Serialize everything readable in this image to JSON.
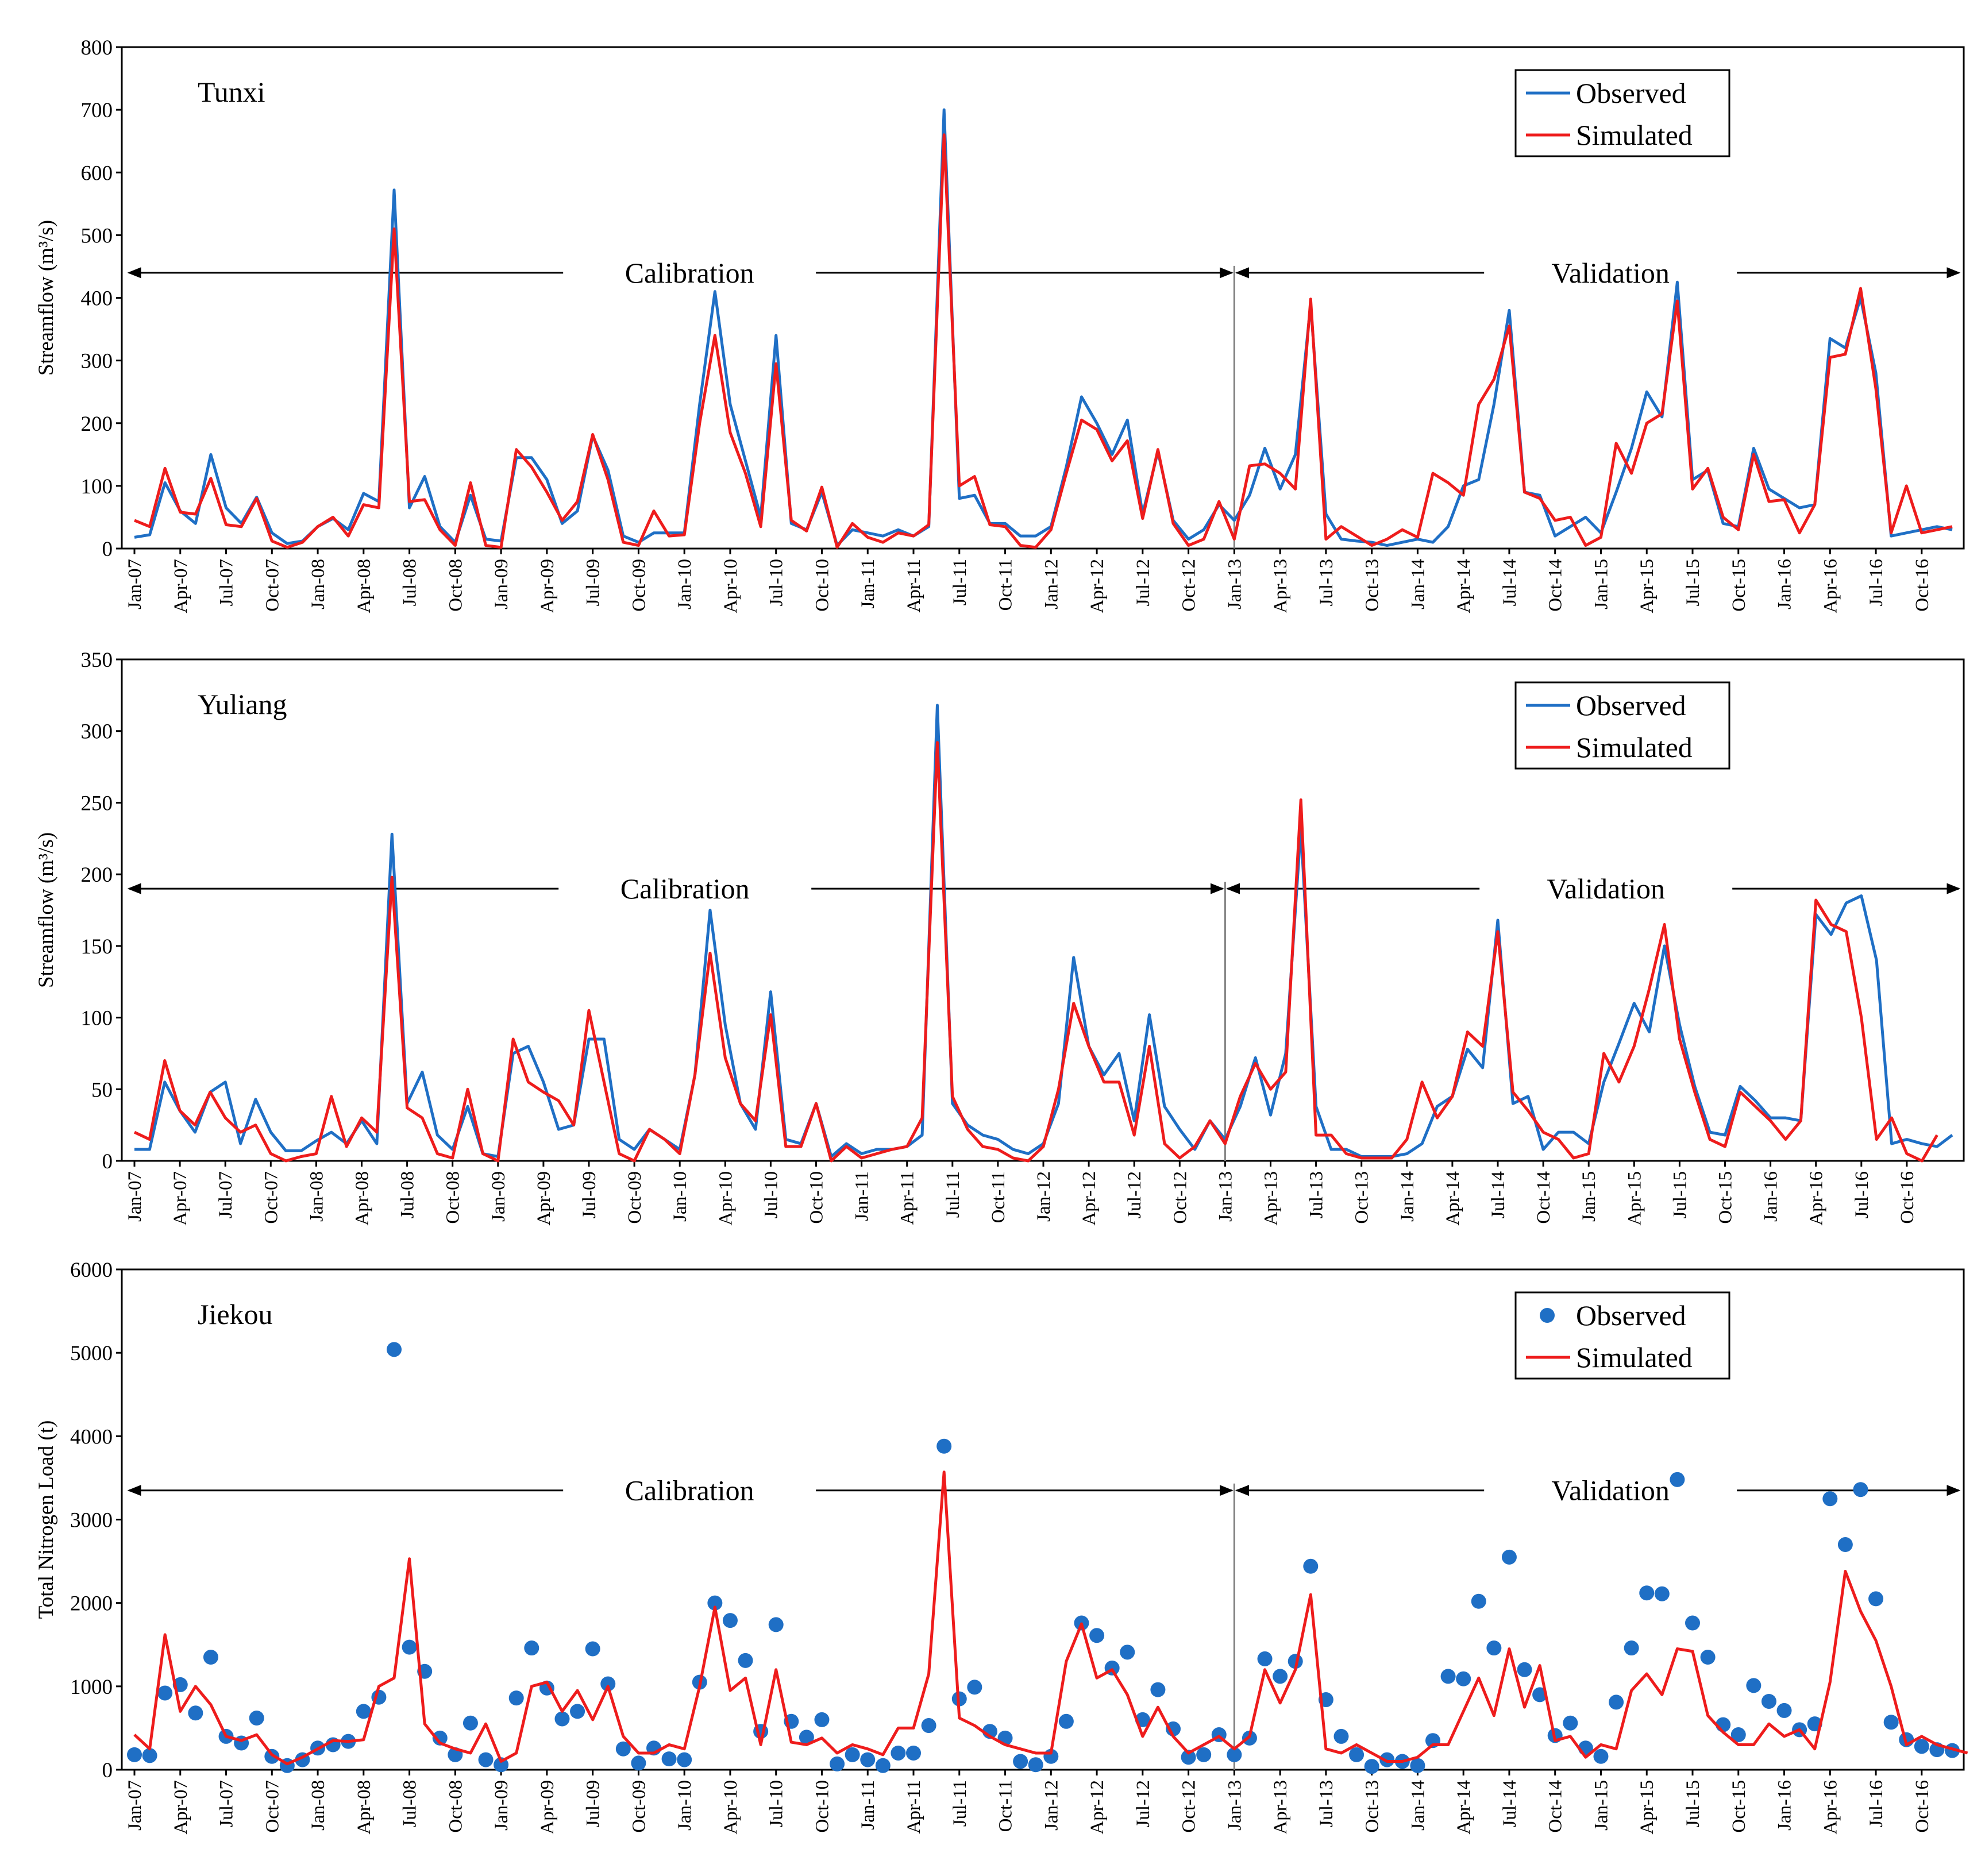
{
  "colors": {
    "observed": "#1F6FC5",
    "simulated": "#EE1C1C",
    "axis": "#000000",
    "period_line": "#808080"
  },
  "x_tick_labels": [
    "Jan-07",
    "Apr-07",
    "Jul-07",
    "Oct-07",
    "Jan-08",
    "Apr-08",
    "Jul-08",
    "Oct-08",
    "Jan-09",
    "Apr-09",
    "Jul-09",
    "Oct-09",
    "Jan-10",
    "Apr-10",
    "Jul-10",
    "Oct-10",
    "Jan-11",
    "Apr-11",
    "Jul-11",
    "Oct-11",
    "Jan-12",
    "Apr-12",
    "Jul-12",
    "Oct-12",
    "Jan-13",
    "Apr-13",
    "Jul-13",
    "Oct-13",
    "Jan-14",
    "Apr-14",
    "Jul-14",
    "Oct-14",
    "Jan-15",
    "Apr-15",
    "Jul-15",
    "Oct-15",
    "Jan-16",
    "Apr-16",
    "Jul-16",
    "Oct-16"
  ],
  "chart_data": [
    {
      "type": "line",
      "title": "Tunxi",
      "ylabel": "Streamflow (m³/s)",
      "ylim": [
        0,
        800
      ],
      "yticks": [
        0,
        100,
        200,
        300,
        400,
        500,
        600,
        700,
        800
      ],
      "period_labels": {
        "calibration": "Calibration",
        "validation": "Validation"
      },
      "period_arrow_value": 440,
      "split_index": 72,
      "series": [
        {
          "name": "Observed",
          "marker": "line",
          "values": [
            18,
            22,
            105,
            60,
            40,
            150,
            65,
            40,
            82,
            25,
            8,
            12,
            35,
            48,
            30,
            88,
            75,
            572,
            65,
            115,
            35,
            10,
            85,
            15,
            12,
            145,
            145,
            110,
            40,
            60,
            180,
            125,
            20,
            10,
            25,
            25,
            25,
            230,
            410,
            230,
            140,
            50,
            340,
            40,
            30,
            90,
            5,
            30,
            25,
            20,
            30,
            20,
            35,
            700,
            80,
            85,
            40,
            40,
            20,
            20,
            35,
            130,
            242,
            200,
            150,
            205,
            55,
            155,
            45,
            15,
            30,
            70,
            45,
            85,
            160,
            95,
            150,
            390,
            55,
            15,
            12,
            10,
            5,
            10,
            15,
            10,
            35,
            100,
            110,
            230,
            380,
            90,
            85,
            20,
            35,
            50,
            25,
            90,
            160,
            250,
            210,
            425,
            110,
            125,
            40,
            35,
            160,
            95,
            80,
            65,
            70,
            335,
            320,
            400,
            280,
            20,
            25,
            30,
            35,
            30
          ]
        },
        {
          "name": "Simulated",
          "marker": "line",
          "values": [
            45,
            35,
            128,
            58,
            55,
            112,
            38,
            35,
            80,
            12,
            2,
            10,
            35,
            50,
            20,
            70,
            65,
            510,
            75,
            78,
            30,
            5,
            105,
            5,
            2,
            158,
            130,
            90,
            45,
            75,
            182,
            110,
            10,
            5,
            60,
            20,
            22,
            200,
            340,
            185,
            120,
            35,
            295,
            45,
            28,
            98,
            2,
            40,
            18,
            10,
            25,
            20,
            38,
            660,
            100,
            115,
            38,
            35,
            5,
            2,
            30,
            120,
            205,
            190,
            140,
            172,
            48,
            158,
            40,
            5,
            15,
            75,
            15,
            132,
            135,
            120,
            95,
            398,
            15,
            35,
            20,
            5,
            15,
            30,
            18,
            120,
            105,
            85,
            230,
            270,
            355,
            90,
            80,
            45,
            50,
            5,
            18,
            168,
            120,
            200,
            215,
            395,
            95,
            128,
            50,
            30,
            150,
            75,
            78,
            25,
            70,
            305,
            310,
            415,
            255,
            25,
            100,
            25,
            30,
            35
          ]
        }
      ]
    },
    {
      "type": "line",
      "title": "Yuliang",
      "ylabel": "Streamflow (m³/s)",
      "ylim": [
        0,
        350
      ],
      "yticks": [
        0,
        50,
        100,
        150,
        200,
        250,
        300,
        350
      ],
      "period_labels": {
        "calibration": "Calibration",
        "validation": "Validation"
      },
      "period_arrow_value": 190,
      "split_index": 72,
      "series": [
        {
          "name": "Observed",
          "marker": "line",
          "values": [
            8,
            8,
            55,
            35,
            20,
            48,
            55,
            12,
            43,
            20,
            7,
            7,
            14,
            20,
            12,
            28,
            12,
            228,
            40,
            62,
            18,
            8,
            38,
            5,
            3,
            75,
            80,
            55,
            22,
            25,
            85,
            85,
            15,
            8,
            22,
            15,
            8,
            60,
            175,
            95,
            40,
            22,
            118,
            15,
            12,
            40,
            3,
            12,
            5,
            8,
            8,
            10,
            18,
            318,
            40,
            25,
            18,
            15,
            8,
            5,
            12,
            40,
            142,
            80,
            60,
            75,
            28,
            102,
            38,
            22,
            8,
            28,
            15,
            38,
            72,
            32,
            75,
            232,
            38,
            8,
            8,
            3,
            3,
            3,
            5,
            12,
            38,
            45,
            78,
            65,
            168,
            40,
            45,
            8,
            20,
            20,
            12,
            55,
            82,
            110,
            90,
            150,
            95,
            52,
            20,
            18,
            52,
            42,
            30,
            30,
            28,
            172,
            158,
            180,
            185,
            140,
            12,
            15,
            12,
            10,
            18
          ]
        },
        {
          "name": "Simulated",
          "marker": "line",
          "values": [
            20,
            15,
            70,
            35,
            25,
            48,
            30,
            20,
            25,
            5,
            0,
            3,
            5,
            45,
            10,
            30,
            20,
            198,
            37,
            30,
            5,
            2,
            50,
            5,
            0,
            85,
            55,
            48,
            42,
            25,
            105,
            55,
            5,
            0,
            22,
            15,
            5,
            60,
            145,
            72,
            40,
            28,
            102,
            10,
            10,
            40,
            0,
            10,
            2,
            5,
            8,
            10,
            30,
            292,
            45,
            22,
            10,
            8,
            2,
            0,
            10,
            50,
            110,
            80,
            55,
            55,
            18,
            80,
            12,
            2,
            10,
            28,
            12,
            45,
            68,
            50,
            62,
            252,
            18,
            18,
            5,
            2,
            2,
            2,
            15,
            55,
            30,
            45,
            90,
            80,
            160,
            48,
            35,
            20,
            15,
            2,
            5,
            75,
            55,
            80,
            120,
            165,
            85,
            48,
            15,
            10,
            48,
            38,
            28,
            15,
            28,
            182,
            165,
            160,
            100,
            15,
            30,
            5,
            0,
            18
          ]
        }
      ]
    },
    {
      "type": "scatter-line",
      "title": "Jiekou",
      "ylabel": "Total Nitrogen Load (t)",
      "ylim": [
        0,
        6000
      ],
      "yticks": [
        0,
        1000,
        2000,
        3000,
        4000,
        5000,
        6000
      ],
      "period_labels": {
        "calibration": "Calibration",
        "validation": "Validation"
      },
      "period_arrow_value": 3350,
      "split_index": 72,
      "series": [
        {
          "name": "Observed",
          "marker": "circle",
          "values": [
            180,
            170,
            920,
            1020,
            680,
            1350,
            400,
            320,
            620,
            160,
            50,
            120,
            260,
            300,
            340,
            700,
            870,
            5040,
            1470,
            1180,
            380,
            180,
            560,
            120,
            60,
            860,
            1460,
            980,
            610,
            700,
            1450,
            1030,
            250,
            80,
            260,
            130,
            120,
            1050,
            2000,
            1790,
            1310,
            460,
            1740,
            580,
            390,
            600,
            70,
            180,
            120,
            50,
            200,
            200,
            530,
            3880,
            850,
            990,
            460,
            380,
            100,
            60,
            160,
            580,
            1760,
            1610,
            1220,
            1410,
            600,
            960,
            490,
            150,
            180,
            420,
            180,
            380,
            1330,
            1120,
            1300,
            2440,
            840,
            400,
            180,
            40,
            120,
            100,
            50,
            350,
            1120,
            1090,
            2020,
            1460,
            2550,
            1200,
            900,
            410,
            560,
            260,
            160,
            810,
            1460,
            2120,
            2110,
            3480,
            1760,
            1350,
            540,
            420,
            1010,
            820,
            710,
            480,
            550,
            3250,
            2700,
            3360,
            2050,
            570,
            360,
            280,
            240,
            230
          ]
        },
        {
          "name": "Simulated",
          "marker": "line",
          "values": [
            420,
            250,
            1620,
            700,
            1000,
            780,
            400,
            350,
            420,
            180,
            70,
            150,
            250,
            350,
            340,
            360,
            1000,
            1100,
            2530,
            550,
            320,
            250,
            200,
            550,
            100,
            200,
            1000,
            1050,
            700,
            950,
            600,
            1000,
            400,
            200,
            200,
            300,
            250,
            1000,
            1950,
            950,
            1100,
            300,
            1200,
            330,
            300,
            380,
            200,
            300,
            250,
            180,
            500,
            500,
            1150,
            3570,
            620,
            530,
            400,
            300,
            250,
            200,
            200,
            1300,
            1750,
            1100,
            1200,
            900,
            400,
            750,
            400,
            200,
            300,
            400,
            250,
            400,
            1200,
            800,
            1200,
            2100,
            250,
            200,
            300,
            200,
            100,
            100,
            150,
            300,
            300,
            700,
            1100,
            650,
            1450,
            750,
            1250,
            350,
            400,
            150,
            300,
            250,
            950,
            1150,
            900,
            1450,
            1420,
            650,
            450,
            300,
            300,
            550,
            400,
            480,
            250,
            1050,
            2380,
            1900,
            1550,
            1000,
            300,
            400,
            300,
            250,
            200
          ]
        }
      ]
    }
  ]
}
